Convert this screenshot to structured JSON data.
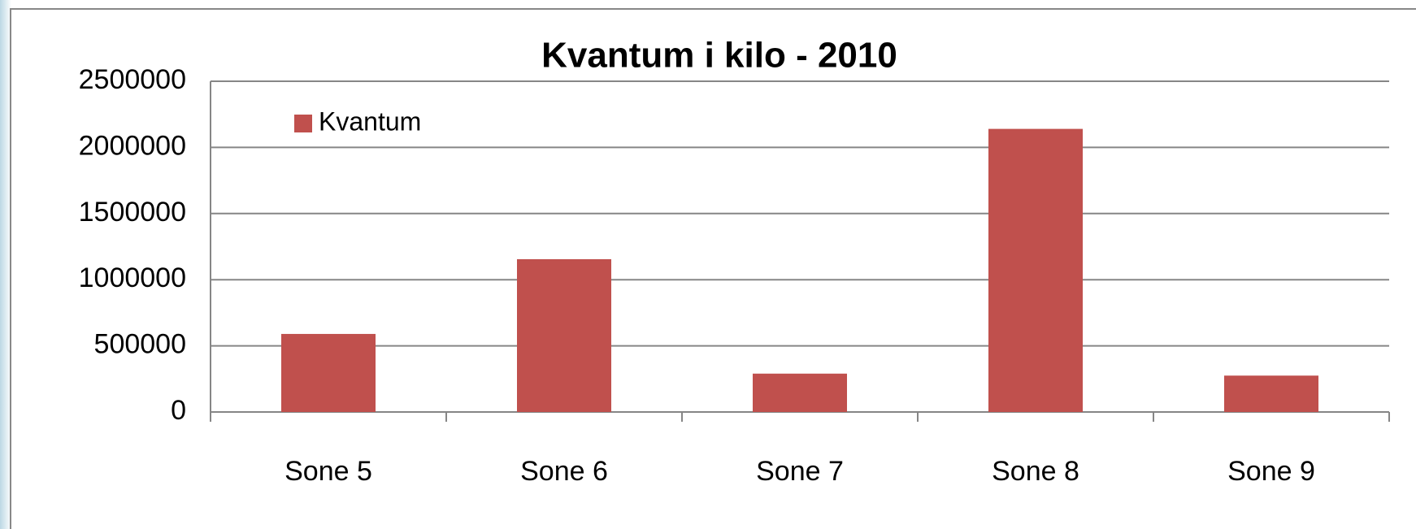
{
  "chart_data": {
    "type": "bar",
    "title": "Kvantum i kilo - 2010",
    "categories": [
      "Sone 5",
      "Sone 6",
      "Sone 7",
      "Sone 8",
      "Sone 9"
    ],
    "series": [
      {
        "name": "Kvantum",
        "color": "#c0504d",
        "values": [
          590000,
          1155000,
          290000,
          2140000,
          275000
        ]
      }
    ],
    "ylim": [
      0,
      2500000
    ],
    "yticks": [
      0,
      500000,
      1000000,
      1500000,
      2000000,
      2500000
    ],
    "grid": true,
    "legend": "top-left"
  }
}
